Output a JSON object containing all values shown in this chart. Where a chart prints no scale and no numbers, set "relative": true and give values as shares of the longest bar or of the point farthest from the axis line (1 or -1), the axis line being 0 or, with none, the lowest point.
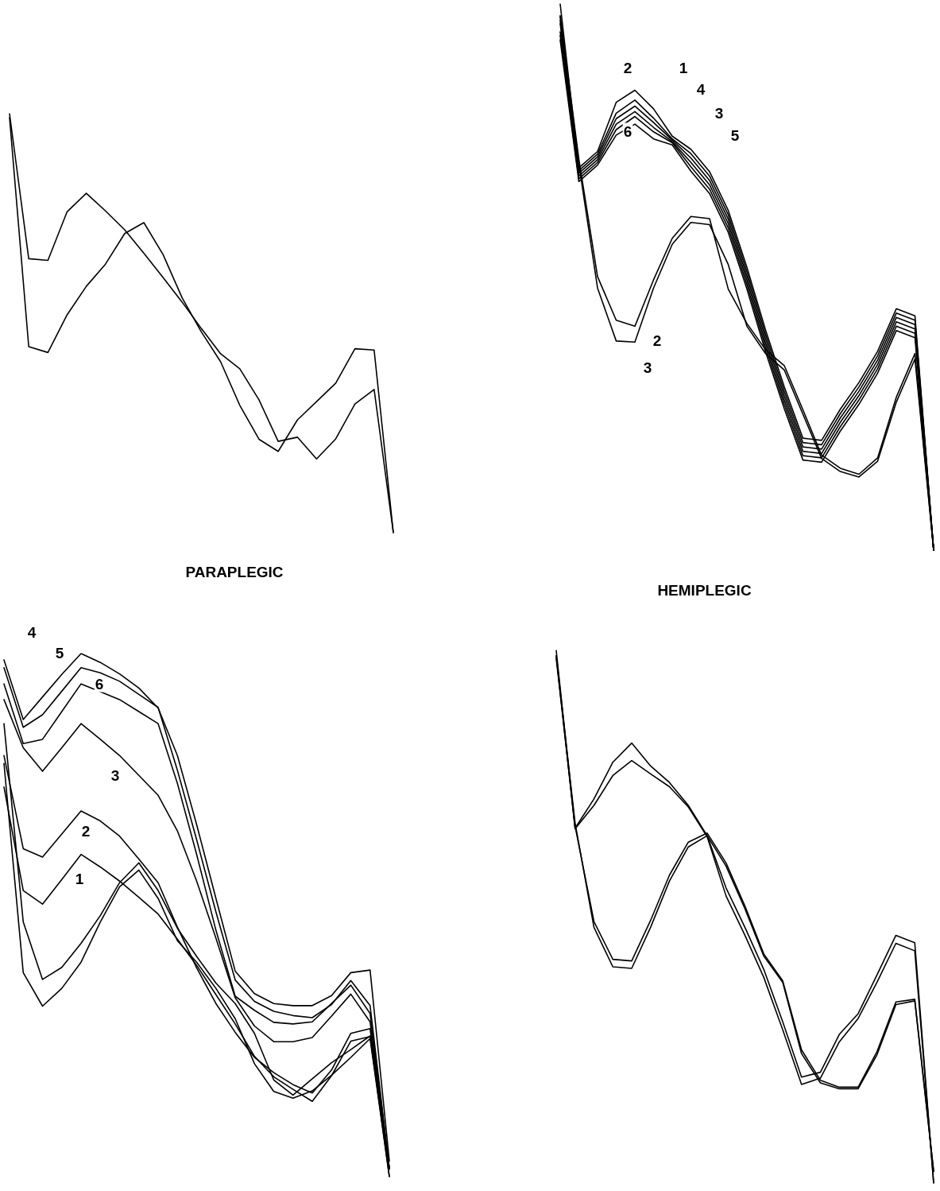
{
  "chart_data": [
    {
      "type": "line",
      "title": "PARAPLEGIC",
      "relative": true,
      "categories": [
        null,
        null,
        null,
        null,
        null,
        null,
        null,
        null,
        null,
        null,
        null,
        null,
        null,
        null,
        null,
        null,
        null,
        null,
        null,
        null,
        null
      ],
      "series": [
        {
          "color": "#000000",
          "values": [
            1.0,
            0.654,
            0.65,
            0.766,
            0.81,
            0.768,
            0.723,
            0.667,
            0.609,
            0.55,
            0.487,
            0.427,
            0.391,
            0.317,
            0.218,
            0.228,
            0.176,
            0.224,
            0.307,
            0.342,
            0
          ]
        },
        {
          "color": "#000000",
          "values": [
            0.991,
            0.444,
            0.43,
            0.52,
            0.588,
            0.641,
            0.714,
            0.74,
            0.664,
            0.56,
            0.479,
            0.408,
            0.304,
            0.223,
            0.194,
            0.269,
            0.313,
            0.357,
            0.439,
            0.436,
            0
          ]
        }
      ]
    },
    {
      "type": "line",
      "title": "HEMIPLEGIC",
      "relative": true,
      "categories": [
        null,
        null,
        null,
        null,
        null,
        null,
        null,
        null,
        null,
        null,
        null,
        null,
        null,
        null,
        null,
        null,
        null,
        null,
        null,
        null,
        null
      ],
      "series": [
        {
          "color": "#000000",
          "values": [
            1.0,
            0.7,
            0.73,
            0.82,
            0.842,
            0.808,
            0.758,
            0.734,
            0.693,
            0.622,
            0.518,
            0.403,
            0.299,
            0.205,
            0.201,
            0.258,
            0.307,
            0.364,
            0.442,
            0.429,
            0
          ]
        },
        {
          "color": "#000000",
          "values": [
            0.978,
            0.695,
            0.725,
            0.8,
            0.824,
            0.791,
            0.753,
            0.726,
            0.685,
            0.614,
            0.51,
            0.395,
            0.291,
            0.197,
            0.193,
            0.25,
            0.299,
            0.356,
            0.434,
            0.421,
            0
          ]
        },
        {
          "color": "#000000",
          "values": [
            0.964,
            0.69,
            0.72,
            0.79,
            0.813,
            0.783,
            0.751,
            0.718,
            0.677,
            0.606,
            0.502,
            0.387,
            0.283,
            0.189,
            0.185,
            0.242,
            0.291,
            0.348,
            0.426,
            0.413,
            0
          ]
        },
        {
          "color": "#000000",
          "values": [
            0.949,
            0.685,
            0.715,
            0.78,
            0.803,
            0.774,
            0.748,
            0.71,
            0.669,
            0.598,
            0.494,
            0.379,
            0.275,
            0.181,
            0.177,
            0.234,
            0.283,
            0.34,
            0.418,
            0.405,
            0
          ]
        },
        {
          "color": "#000000",
          "values": [
            0.942,
            0.68,
            0.71,
            0.77,
            0.794,
            0.766,
            0.746,
            0.702,
            0.661,
            0.59,
            0.486,
            0.371,
            0.267,
            0.173,
            0.169,
            0.226,
            0.275,
            0.332,
            0.41,
            0.397,
            0
          ]
        },
        {
          "color": "#000000",
          "values": [
            0.934,
            0.675,
            0.705,
            0.76,
            0.78,
            0.753,
            0.742,
            0.694,
            0.653,
            0.582,
            0.478,
            0.363,
            0.259,
            0.165,
            0.161,
            0.218,
            0.267,
            0.324,
            0.402,
            0.389,
            0
          ]
        },
        {
          "color": "#000000",
          "values": [
            0.978,
            0.716,
            0.501,
            0.421,
            0.41,
            0.495,
            0.571,
            0.611,
            0.607,
            0.478,
            0.415,
            0.367,
            0.338,
            0.257,
            0.174,
            0.15,
            0.139,
            0.169,
            0.28,
            0.36,
            0
          ]
        },
        {
          "color": "#000000",
          "values": [
            0.97,
            0.707,
            0.48,
            0.383,
            0.381,
            0.48,
            0.56,
            0.6,
            0.596,
            0.523,
            0.41,
            0.36,
            0.33,
            0.249,
            0.168,
            0.144,
            0.134,
            0.163,
            0.271,
            0.35,
            0
          ]
        }
      ],
      "annotations": [
        "2",
        "1",
        "4",
        "3",
        "5",
        "6",
        "2",
        "3"
      ]
    },
    {
      "type": "line",
      "relative": true,
      "categories": [
        null,
        null,
        null,
        null,
        null,
        null,
        null,
        null,
        null,
        null,
        null,
        null,
        null,
        null,
        null,
        null,
        null,
        null,
        null,
        null,
        null
      ],
      "series": [
        {
          "color": "#000000",
          "values": [
            0.988,
            0.874,
            0.917,
            0.96,
            1.0,
            0.983,
            0.961,
            0.934,
            0.896,
            0.805,
            0.673,
            0.532,
            0.393,
            0.35,
            0.331,
            0.327,
            0.327,
            0.346,
            0.39,
            0.395,
            0.03
          ]
        },
        {
          "color": "#000000",
          "values": [
            0.973,
            0.859,
            0.883,
            0.928,
            0.973,
            0.963,
            0.947,
            0.922,
            0.897,
            0.777,
            0.644,
            0.506,
            0.376,
            0.335,
            0.316,
            0.308,
            0.304,
            0.329,
            0.375,
            0.327,
            0.015
          ]
        },
        {
          "color": "#000000",
          "values": [
            0.942,
            0.828,
            0.836,
            0.889,
            0.942,
            0.927,
            0.912,
            0.889,
            0.866,
            0.752,
            0.616,
            0.471,
            0.345,
            0.318,
            0.295,
            0.292,
            0.296,
            0.331,
            0.366,
            0.312,
            0.015
          ]
        },
        {
          "color": "#000000",
          "values": [
            0.912,
            0.82,
            0.775,
            0.82,
            0.866,
            0.836,
            0.805,
            0.767,
            0.729,
            0.661,
            0.565,
            0.456,
            0.342,
            0.288,
            0.258,
            0.258,
            0.266,
            0.307,
            0.349,
            0.296,
            0.015
          ]
        },
        {
          "color": "#000000",
          "values": [
            0.805,
            0.627,
            0.611,
            0.655,
            0.699,
            0.68,
            0.651,
            0.607,
            0.562,
            0.477,
            0.399,
            0.331,
            0.276,
            0.228,
            0.199,
            0.176,
            0.16,
            0.204,
            0.274,
            0.283,
            0.015
          ]
        },
        {
          "color": "#000000",
          "values": [
            0.745,
            0.547,
            0.521,
            0.568,
            0.616,
            0.592,
            0.565,
            0.534,
            0.502,
            0.454,
            0.404,
            0.348,
            0.292,
            0.23,
            0.191,
            0.167,
            0.144,
            0.193,
            0.259,
            0.268,
            0.015
          ]
        },
        {
          "color": "#000000",
          "values": [
            0.866,
            0.487,
            0.377,
            0.4,
            0.446,
            0.499,
            0.562,
            0.6,
            0.547,
            0.475,
            0.421,
            0.37,
            0.331,
            0.274,
            0.185,
            0.156,
            0.187,
            0.218,
            0.243,
            0.269,
            0
          ]
        },
        {
          "color": "#000000",
          "values": [
            0.79,
            0.39,
            0.326,
            0.36,
            0.41,
            0.487,
            0.554,
            0.586,
            0.532,
            0.451,
            0.41,
            0.36,
            0.302,
            0.216,
            0.163,
            0.15,
            0.164,
            0.194,
            0.228,
            0.264,
            0
          ]
        }
      ],
      "annotations": [
        "4",
        "5",
        "6",
        "3",
        "2",
        "1"
      ]
    },
    {
      "type": "line",
      "relative": true,
      "categories": [
        null,
        null,
        null,
        null,
        null,
        null,
        null,
        null,
        null,
        null,
        null,
        null,
        null,
        null,
        null,
        null,
        null,
        null,
        null,
        null,
        null
      ],
      "series": [
        {
          "color": "#000000",
          "values": [
            1.0,
            0.666,
            0.721,
            0.79,
            0.826,
            0.783,
            0.752,
            0.709,
            0.652,
            0.554,
            0.48,
            0.401,
            0.303,
            0.199,
            0.208,
            0.279,
            0.318,
            0.391,
            0.465,
            0.451,
            0
          ]
        },
        {
          "color": "#000000",
          "values": [
            0.99,
            0.665,
            0.709,
            0.765,
            0.793,
            0.768,
            0.744,
            0.706,
            0.65,
            0.539,
            0.465,
            0.386,
            0.288,
            0.185,
            0.197,
            0.265,
            0.309,
            0.377,
            0.45,
            0.436,
            0
          ]
        },
        {
          "color": "#000000",
          "values": [
            0.99,
            0.676,
            0.48,
            0.406,
            0.403,
            0.48,
            0.567,
            0.631,
            0.652,
            0.595,
            0.515,
            0.426,
            0.377,
            0.243,
            0.188,
            0.177,
            0.177,
            0.241,
            0.335,
            0.342,
            0.022
          ]
        },
        {
          "color": "#000000",
          "values": [
            0.985,
            0.67,
            0.491,
            0.42,
            0.417,
            0.493,
            0.578,
            0.64,
            0.657,
            0.601,
            0.52,
            0.43,
            0.38,
            0.25,
            0.193,
            0.18,
            0.18,
            0.247,
            0.34,
            0.345,
            0.022
          ]
        }
      ]
    }
  ]
}
